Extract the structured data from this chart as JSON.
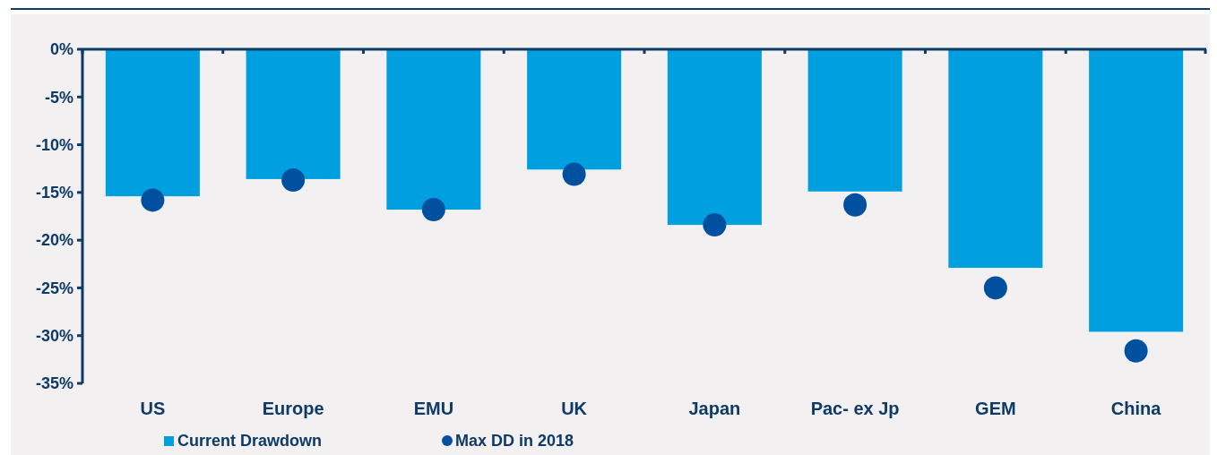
{
  "chart_data": {
    "type": "bar",
    "categories": [
      "US",
      "Europe",
      "EMU",
      "UK",
      "Japan",
      "Pac- ex Jp",
      "GEM",
      "China"
    ],
    "series": [
      {
        "name": "Current Drawdown",
        "color": "#00a0e0",
        "values": [
          -15.4,
          -13.6,
          -16.8,
          -12.6,
          -18.4,
          -14.9,
          -22.9,
          -29.6
        ]
      },
      {
        "name": "Max DD in 2018",
        "type": "scatter",
        "color": "#0050a0",
        "x": [
          "US",
          "Europe",
          "EMU",
          "UK",
          "Japan",
          "Pac- ex Jp",
          "GEM",
          "China"
        ],
        "values": [
          -15.8,
          -13.7,
          -16.8,
          -13.1,
          -18.4,
          -16.3,
          -25.0,
          -31.6
        ]
      }
    ],
    "ylim": [
      -35,
      0
    ],
    "yticks": [
      {
        "value": 0,
        "label": "0%"
      },
      {
        "value": -5,
        "label": "-5%"
      },
      {
        "value": -10,
        "label": "-10%"
      },
      {
        "value": -15,
        "label": "-15%"
      },
      {
        "value": -20,
        "label": "-20%"
      },
      {
        "value": -25,
        "label": "-25%"
      },
      {
        "value": -30,
        "label": "-30%"
      },
      {
        "value": -35,
        "label": "-35%"
      }
    ],
    "legend": "bottom",
    "marker": "circle",
    "grid": false
  }
}
